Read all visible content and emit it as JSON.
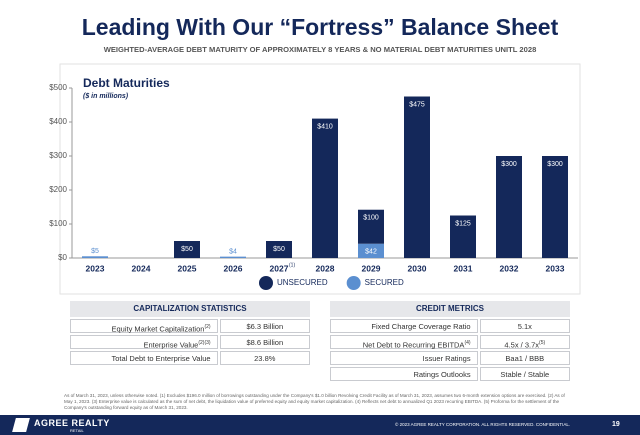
{
  "header": {
    "title": "Leading With Our “Fortress” Balance Sheet",
    "subtitle": "WEIGHTED-AVERAGE DEBT MATURITY OF APPROXIMATELY 8 YEARS & NO MATERIAL DEBT MATURITIES UNITL 2028"
  },
  "chart_data": {
    "type": "stacked_bar",
    "title": "Debt Maturities",
    "subtitle": "($ in millions)",
    "categories": [
      "2023",
      "2024",
      "2025",
      "2026",
      "2027",
      "2028",
      "2029",
      "2030",
      "2031",
      "2032",
      "2033"
    ],
    "category_notes": [
      null,
      null,
      null,
      null,
      "(1)",
      null,
      null,
      null,
      null,
      null,
      null
    ],
    "series": [
      {
        "name": "UNSECURED",
        "color": "#14285a",
        "values": [
          null,
          null,
          50,
          null,
          50,
          410,
          100,
          475,
          125,
          300,
          300
        ],
        "value_labels": [
          null,
          null,
          "$50",
          null,
          "$50",
          "$410",
          "$100",
          "$475",
          "$125",
          "$300",
          "$300"
        ]
      },
      {
        "name": "SECURED",
        "color": "#5b8fd0",
        "values": [
          5,
          null,
          null,
          4,
          null,
          null,
          42,
          null,
          null,
          null,
          null
        ],
        "value_labels": [
          "$5",
          null,
          null,
          "$4",
          null,
          null,
          "$42",
          null,
          null,
          null,
          null
        ]
      }
    ],
    "ylim": [
      0,
      500
    ],
    "yticks": [
      {
        "value": 0,
        "label": "$0"
      },
      {
        "value": 100,
        "label": "$100"
      },
      {
        "value": 200,
        "label": "$200"
      },
      {
        "value": 300,
        "label": "$300"
      },
      {
        "value": 400,
        "label": "$400"
      },
      {
        "value": 500,
        "label": "$500"
      }
    ],
    "legend": "bottom"
  },
  "tables": [
    {
      "title": "CAPITALIZATION STATISTICS",
      "rows": [
        {
          "label": "Equity Market Capitalization",
          "label_note": "(2)",
          "value": "$6.3 Billion"
        },
        {
          "label": "Enterprise Value",
          "label_note": "(2)(3)",
          "value": "$8.6 Billion"
        },
        {
          "label": "Total Debt to Enterprise Value",
          "value": "23.8%"
        }
      ]
    },
    {
      "title": "CREDIT METRICS",
      "rows": [
        {
          "label": "Fixed Charge Coverage Ratio",
          "value": "5.1x"
        },
        {
          "label": "Net Debt to Recurring EBITDA",
          "label_note": "(4)",
          "value": "4.5x / 3.7x",
          "value_note": "(5)"
        },
        {
          "label": "Issuer Ratings",
          "value": "Baa1 / BBB"
        },
        {
          "label": "Ratings Outlooks",
          "value": "Stable / Stable"
        }
      ]
    }
  ],
  "footnote": "As of March 31, 2023, unless otherwise noted. (1) Excludes $196.0 million of borrowings outstanding under the Company's $1.0 billion Revolving Credit Facility as of March 31, 2023, assumes two 6-month extension options are exercised. (2) As of May 1, 2023. (3) Enterprise value is calculated as the sum of net debt, the liquidation value of preferred equity and equity market capitalization. (4) Reflects net debt to annualized Q1 2023 recurring EBITDA. (5) Proforma for the settlement of the Company's outstanding forward equity as of March 31, 2023.",
  "footer": {
    "logo": "AGREE REALTY",
    "logo_sub": "RETAIL",
    "copyright": "© 2023 AGREE REALTY CORPORATION. ALL RIGHTS RESERVED. CONFIDENTIAL.",
    "page": "19"
  }
}
